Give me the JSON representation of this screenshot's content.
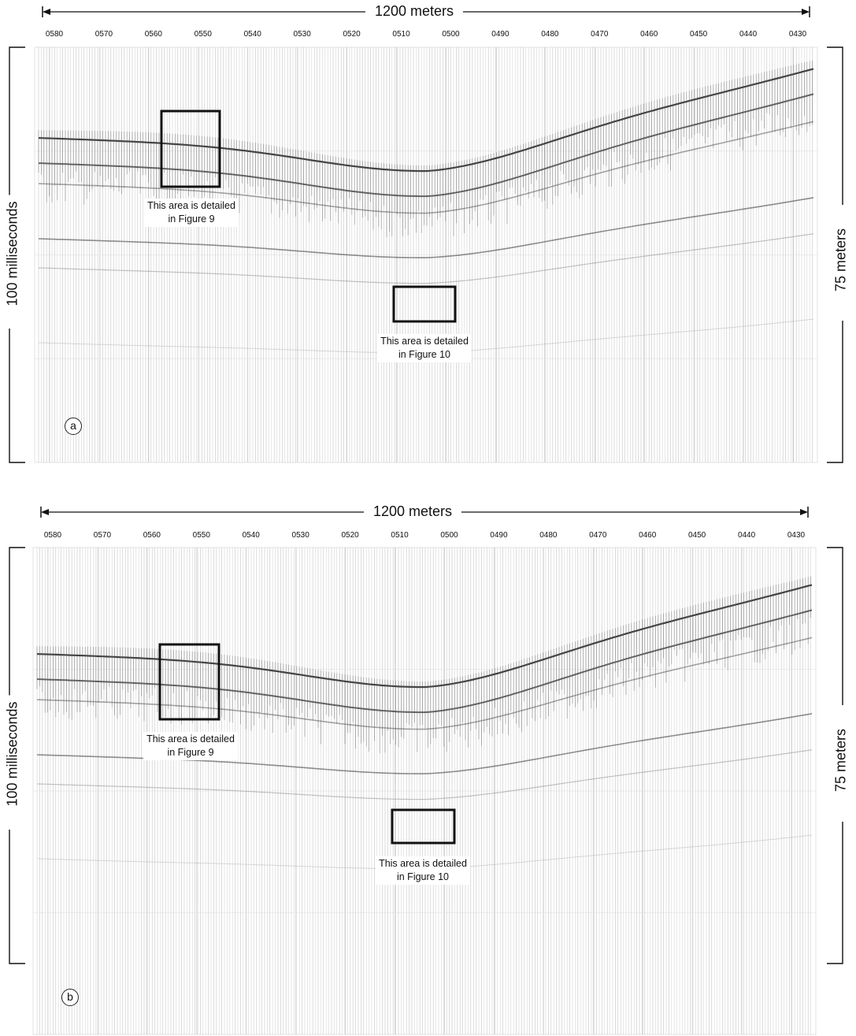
{
  "figure": {
    "panels": [
      {
        "id": "a",
        "letter": "a",
        "horizontal_scale": "1200 meters",
        "left_scale": "100 milliseconds",
        "right_scale": "75 meters",
        "trace_labels": [
          "0580",
          "0570",
          "0560",
          "0550",
          "0540",
          "0530",
          "0520",
          "0510",
          "0500",
          "0490",
          "0480",
          "0470",
          "0460",
          "0450",
          "0440",
          "0430"
        ],
        "boxes": [
          {
            "caption_line1": "This area is detailed",
            "caption_line2": "in Figure 9"
          },
          {
            "caption_line1": "This area is detailed",
            "caption_line2": "in Figure 10"
          }
        ]
      },
      {
        "id": "b",
        "letter": "b",
        "horizontal_scale": "1200 meters",
        "left_scale": "100 milliseconds",
        "right_scale": "75 meters",
        "trace_labels": [
          "0580",
          "0570",
          "0560",
          "0550",
          "0540",
          "0530",
          "0520",
          "0510",
          "0500",
          "0490",
          "0480",
          "0470",
          "0460",
          "0450",
          "0440",
          "0430"
        ],
        "boxes": [
          {
            "caption_line1": "This area is detailed",
            "caption_line2": "in Figure 9"
          },
          {
            "caption_line1": "This area is detailed",
            "caption_line2": "in Figure 10"
          }
        ]
      }
    ],
    "colors": {
      "ink": "#111111",
      "trace_dark": "#333333",
      "trace_light": "#bbbbbb",
      "grid": "#cfcfcf"
    }
  }
}
